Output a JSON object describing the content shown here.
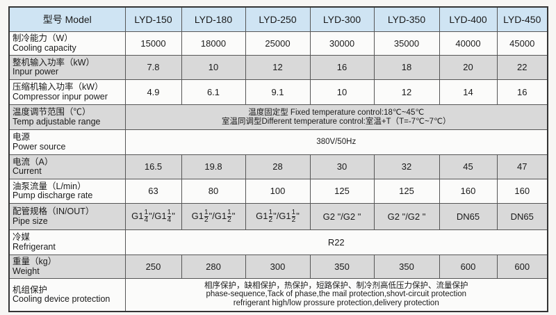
{
  "header": {
    "label": "型号 Model",
    "models": [
      "LYD-150",
      "LYD-180",
      "LYD-250",
      "LYD-300",
      "LYD-350",
      "LYD-400",
      "LYD-450"
    ]
  },
  "rows": {
    "cooling": {
      "zh": "制冷能力（W）",
      "en": "Cooling capacity",
      "values": [
        "15000",
        "18000",
        "25000",
        "30000",
        "35000",
        "40000",
        "45000"
      ]
    },
    "input_power": {
      "zh": "整机输入功率（kW）",
      "en": "Inpur power",
      "values": [
        "7.8",
        "10",
        "12",
        "16",
        "18",
        "20",
        "22"
      ]
    },
    "compressor_power": {
      "zh": "压缩机输入功率（kW）",
      "en": "Compressor inpur power",
      "values": [
        "4.9",
        "6.1",
        "9.1",
        "10",
        "12",
        "14",
        "16"
      ]
    },
    "temp": {
      "zh": "温度调节范围（℃）",
      "en": "Temp adjustable range",
      "line1": "温度固定型 Fixed temperature control:18℃~45℃",
      "line2": "室温同调型Different temperature control:室温+T（T=-7℃~7℃）"
    },
    "power_source": {
      "zh": "电源",
      "en": "Power source",
      "value": "380V/50Hz"
    },
    "current": {
      "zh": "电流（A）",
      "en": "Current",
      "values": [
        "16.5",
        "19.8",
        "28",
        "30",
        "32",
        "45",
        "47"
      ]
    },
    "pump": {
      "zh": "油泵流量（L/min）",
      "en": "Pump discharge rate",
      "values": [
        "63",
        "80",
        "100",
        "125",
        "125",
        "160",
        "160"
      ]
    },
    "pipe": {
      "zh": "配管规格（IN/OUT）",
      "en": "Pipe size",
      "values": [
        {
          "a": "G1",
          "an": "1",
          "ad": "4",
          "b": "/G1",
          "bn": "1",
          "bd": "4"
        },
        {
          "a": "G1",
          "an": "1",
          "ad": "2",
          "b": "/G1",
          "bn": "1",
          "bd": "2"
        },
        {
          "a": "G1",
          "an": "1",
          "ad": "2",
          "b": "/G1",
          "bn": "1",
          "bd": "2"
        },
        "G2 \"/G2 \"",
        "G2 \"/G2 \"",
        "DN65",
        "DN65"
      ]
    },
    "refrigerant": {
      "zh": "冷媒",
      "en": "Refrigerant",
      "value": "R22"
    },
    "weight": {
      "zh": "重量（kg）",
      "en": "Weight",
      "values": [
        "250",
        "280",
        "300",
        "350",
        "350",
        "600",
        "600"
      ]
    },
    "protection": {
      "zh": "机组保护",
      "en": "Cooling device protection",
      "line1": "相序保护，缺相保护，热保护，短路保护、制冷剂高低压力保护、流量保护",
      "line2": "phase-sequence,Tack of phase,the mail protection,shovt-circuit protection",
      "line3": "refrigerant high/low prossure protection,delivery protection"
    }
  },
  "colors": {
    "header_bg": "#cfe4f3",
    "gray_row": "#d9d9d9",
    "white_row": "#fbfbfa"
  }
}
